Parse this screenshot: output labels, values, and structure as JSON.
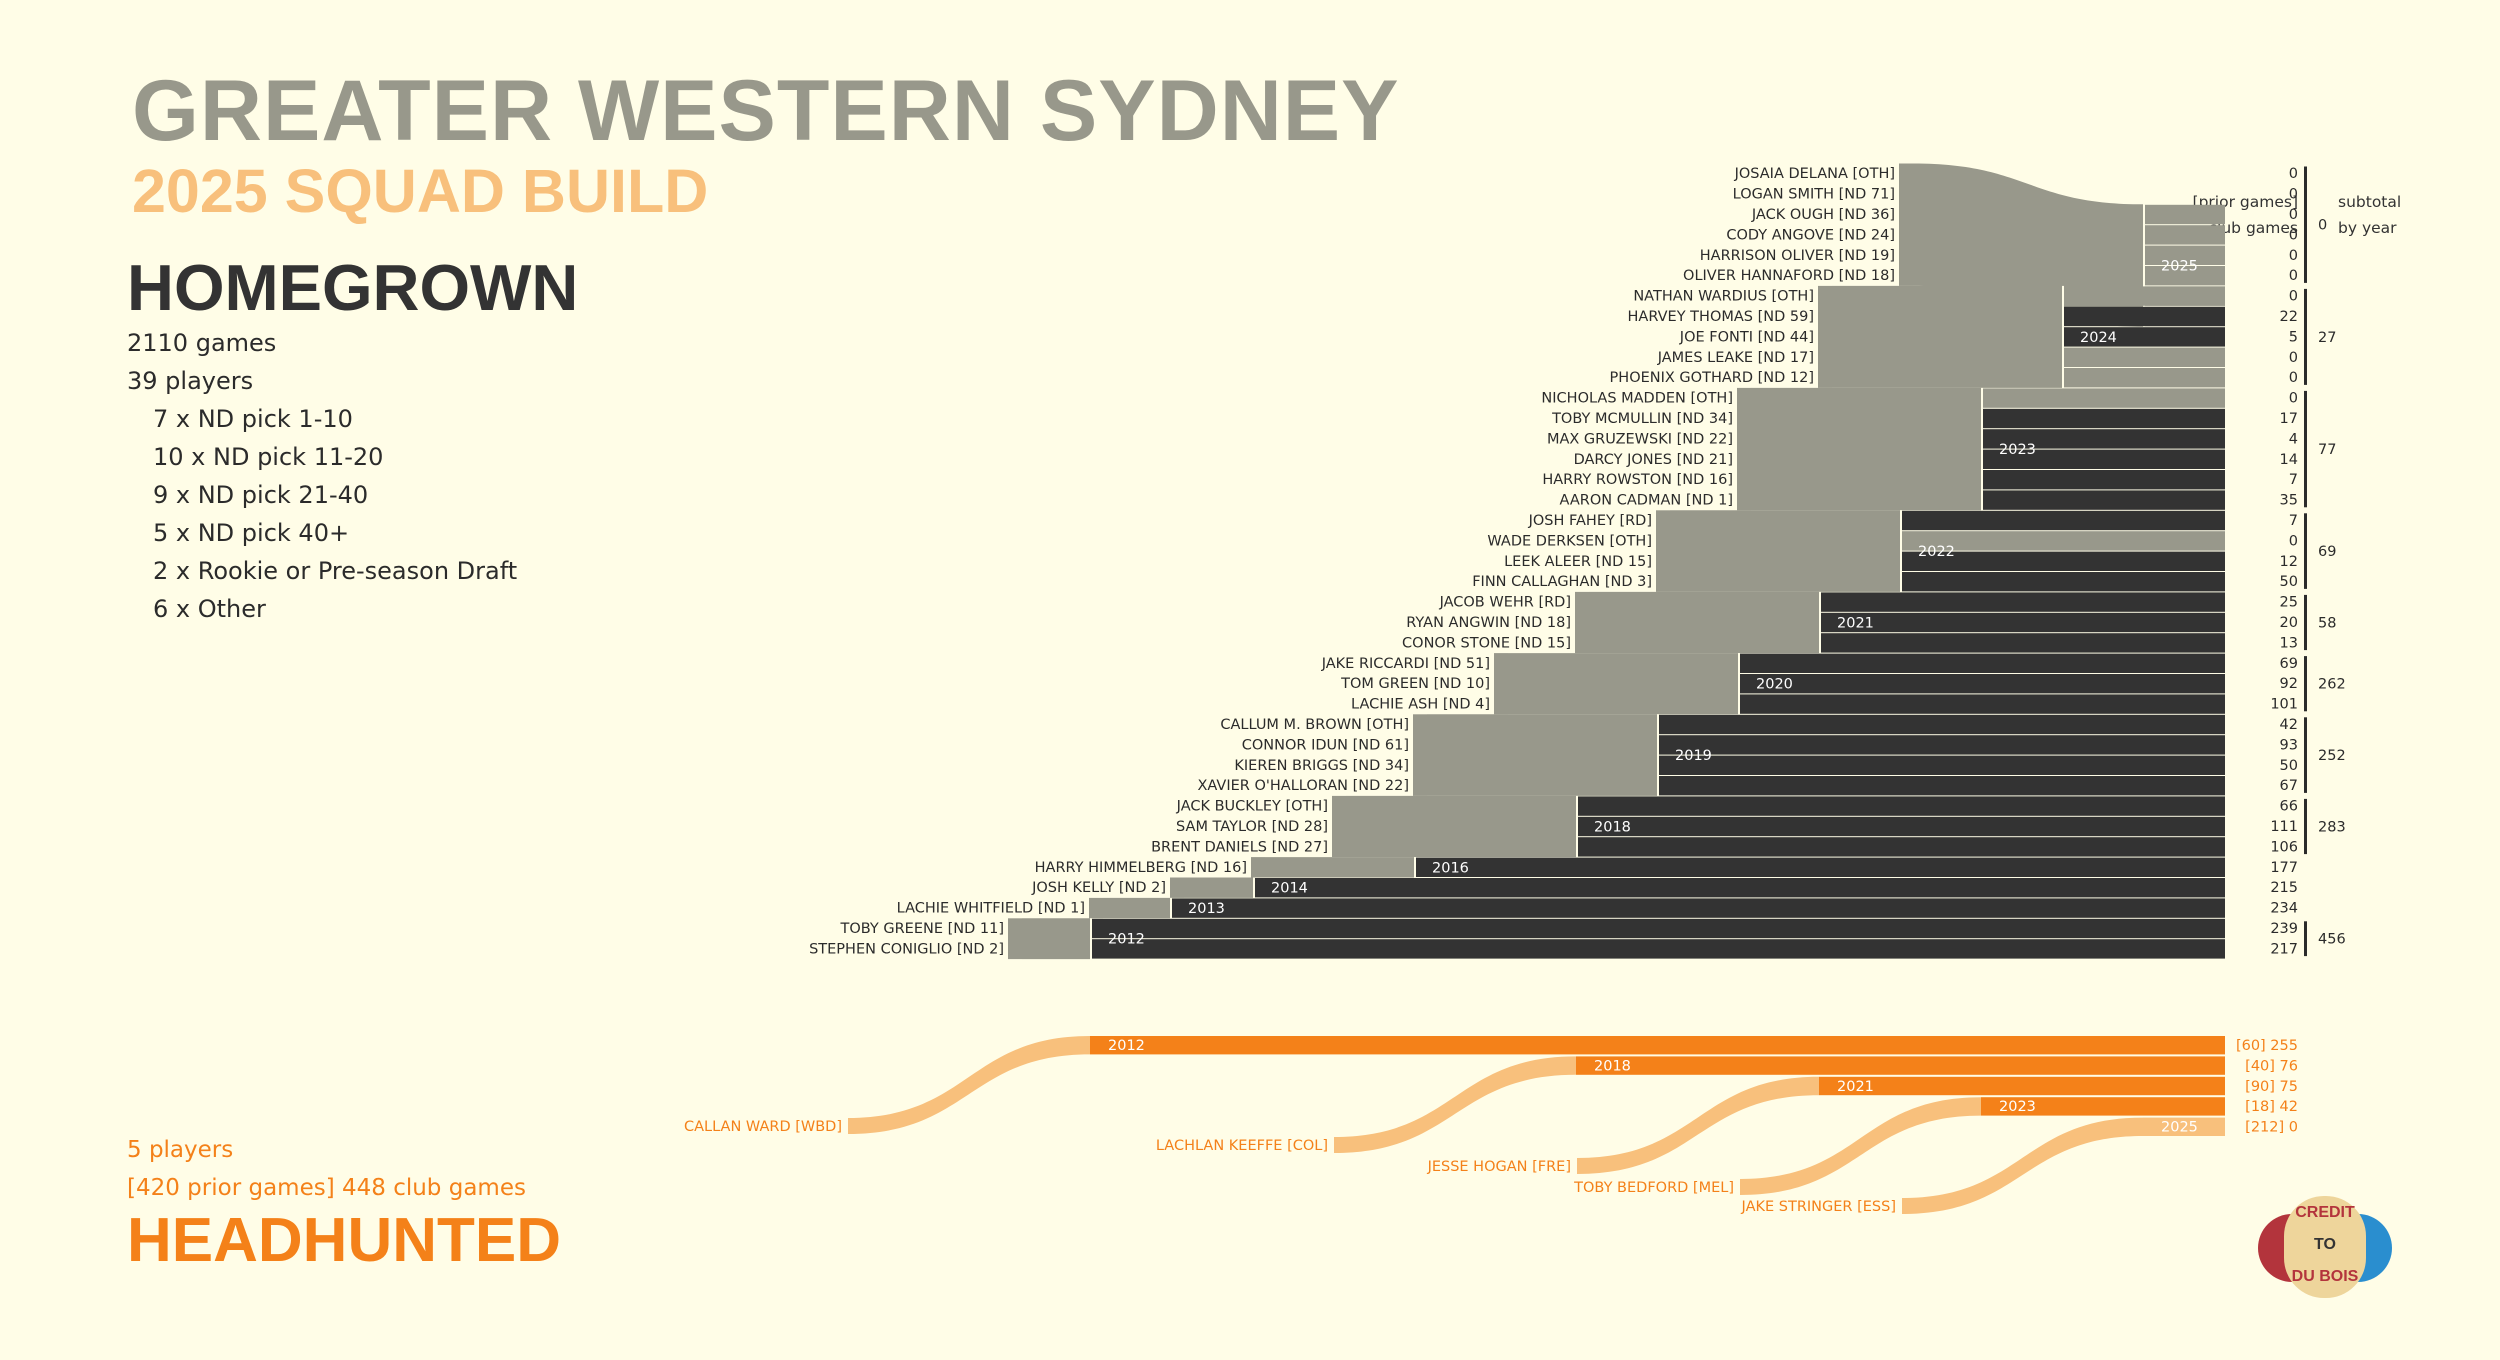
{
  "header": {
    "title": "GREATER WESTERN SYDNEY",
    "subtitle": "2025 SQUAD BUILD"
  },
  "homegrown": {
    "heading": "HOMEGROWN",
    "stats": [
      "2110 games",
      "39 players",
      "7 x ND pick 1-10",
      "10 x ND pick 11-20",
      "9 x ND pick 21-40",
      "5 x ND pick 40+",
      "2 x Rookie or Pre-season Draft",
      "6 x Other"
    ]
  },
  "headhunted": {
    "heading": "HEADHUNTED",
    "players_line": "5 players",
    "games_line": "[420 prior games] 448 club games"
  },
  "columns": {
    "prior_label": "[prior games]",
    "club_label": "club games",
    "subtotal_label": "subtotal",
    "by_year_label": "by year"
  },
  "logo": {
    "line1": "CREDIT",
    "line2": "TO",
    "line3": "DU BOIS"
  },
  "colors": {
    "background": "#fffde7",
    "homegrown_flow": "#98988b",
    "homegrown_bar": "#333333",
    "headhunted_flow": "#f8c07c",
    "headhunted_bar": "#f48119",
    "title_grey": "#98988b",
    "subtitle_orange": "#f8c07c"
  },
  "chart_data": {
    "type": "sankey",
    "right_end_year": 2025,
    "years": [
      2012,
      2013,
      2014,
      2016,
      2018,
      2019,
      2020,
      2021,
      2022,
      2023,
      2024,
      2025
    ],
    "homegrown_groups": [
      {
        "year": 2025,
        "subtotal": "0",
        "players": [
          {
            "label": "JOSAIA DELANA [OTH]",
            "games": "0"
          },
          {
            "label": "LOGAN SMITH [ND 71]",
            "games": "0"
          },
          {
            "label": "JACK OUGH [ND 36]",
            "games": "0"
          },
          {
            "label": "CODY ANGOVE [ND 24]",
            "games": "0"
          },
          {
            "label": "HARRISON OLIVER [ND 19]",
            "games": "0"
          },
          {
            "label": "OLIVER HANNAFORD [ND 18]",
            "games": "0"
          }
        ]
      },
      {
        "year": 2024,
        "subtotal": "27",
        "players": [
          {
            "label": "NATHAN WARDIUS [OTH]",
            "games": "0"
          },
          {
            "label": "HARVEY THOMAS [ND 59]",
            "games": "22"
          },
          {
            "label": "JOE FONTI [ND 44]",
            "games": "5"
          },
          {
            "label": "JAMES LEAKE [ND 17]",
            "games": "0"
          },
          {
            "label": "PHOENIX GOTHARD [ND 12]",
            "games": "0"
          }
        ]
      },
      {
        "year": 2023,
        "subtotal": "77",
        "players": [
          {
            "label": "NICHOLAS MADDEN [OTH]",
            "games": "0"
          },
          {
            "label": "TOBY MCMULLIN [ND 34]",
            "games": "17"
          },
          {
            "label": "MAX GRUZEWSKI [ND 22]",
            "games": "4"
          },
          {
            "label": "DARCY JONES [ND 21]",
            "games": "14"
          },
          {
            "label": "HARRY ROWSTON [ND 16]",
            "games": "7"
          },
          {
            "label": "AARON CADMAN [ND 1]",
            "games": "35"
          }
        ]
      },
      {
        "year": 2022,
        "subtotal": "69",
        "players": [
          {
            "label": "JOSH FAHEY [RD]",
            "games": "7"
          },
          {
            "label": "WADE DERKSEN [OTH]",
            "games": "0"
          },
          {
            "label": "LEEK ALEER [ND 15]",
            "games": "12"
          },
          {
            "label": "FINN CALLAGHAN [ND 3]",
            "games": "50"
          }
        ]
      },
      {
        "year": 2021,
        "subtotal": "58",
        "players": [
          {
            "label": "JACOB WEHR [RD]",
            "games": "25"
          },
          {
            "label": "RYAN ANGWIN [ND 18]",
            "games": "20"
          },
          {
            "label": "CONOR STONE [ND 15]",
            "games": "13"
          }
        ]
      },
      {
        "year": 2020,
        "subtotal": "262",
        "players": [
          {
            "label": "JAKE RICCARDI [ND 51]",
            "games": "69"
          },
          {
            "label": "TOM GREEN [ND 10]",
            "games": "92"
          },
          {
            "label": "LACHIE ASH [ND 4]",
            "games": "101"
          }
        ]
      },
      {
        "year": 2019,
        "subtotal": "252",
        "players": [
          {
            "label": "CALLUM M. BROWN [OTH]",
            "games": "42"
          },
          {
            "label": "CONNOR IDUN [ND 61]",
            "games": "93"
          },
          {
            "label": "KIEREN BRIGGS [ND 34]",
            "games": "50"
          },
          {
            "label": "XAVIER O'HALLORAN [ND 22]",
            "games": "67"
          }
        ]
      },
      {
        "year": 2018,
        "subtotal": "283",
        "players": [
          {
            "label": "JACK BUCKLEY [OTH]",
            "games": "66"
          },
          {
            "label": "SAM TAYLOR [ND 28]",
            "games": "111"
          },
          {
            "label": "BRENT DANIELS [ND 27]",
            "games": "106"
          }
        ]
      },
      {
        "year": 2016,
        "subtotal": "",
        "players": [
          {
            "label": "HARRY HIMMELBERG [ND 16]",
            "games": "177"
          }
        ]
      },
      {
        "year": 2014,
        "subtotal": "",
        "players": [
          {
            "label": "JOSH KELLY [ND 2]",
            "games": "215"
          }
        ]
      },
      {
        "year": 2013,
        "subtotal": "",
        "players": [
          {
            "label": "LACHIE WHITFIELD [ND 1]",
            "games": "234"
          }
        ]
      },
      {
        "year": 2012,
        "subtotal": "456",
        "players": [
          {
            "label": "TOBY GREENE [ND 11]",
            "games": "239"
          },
          {
            "label": "STEPHEN CONIGLIO [ND 2]",
            "games": "217"
          }
        ]
      }
    ],
    "headhunted_players": [
      {
        "label": "CALLAN WARD [WBD]",
        "year": 2012,
        "prior": 60,
        "games": 255,
        "value_label": "[60] 255"
      },
      {
        "label": "LACHLAN KEEFFE [COL]",
        "year": 2018,
        "prior": 40,
        "games": 76,
        "value_label": "[40] 76"
      },
      {
        "label": "JESSE HOGAN [FRE]",
        "year": 2021,
        "prior": 90,
        "games": 75,
        "value_label": "[90] 75"
      },
      {
        "label": "TOBY BEDFORD [MEL]",
        "year": 2023,
        "prior": 18,
        "games": 42,
        "value_label": "[18] 42"
      },
      {
        "label": "JAKE STRINGER [ESS]",
        "year": 2025,
        "prior": 212,
        "games": 0,
        "value_label": "[212] 0"
      }
    ]
  }
}
